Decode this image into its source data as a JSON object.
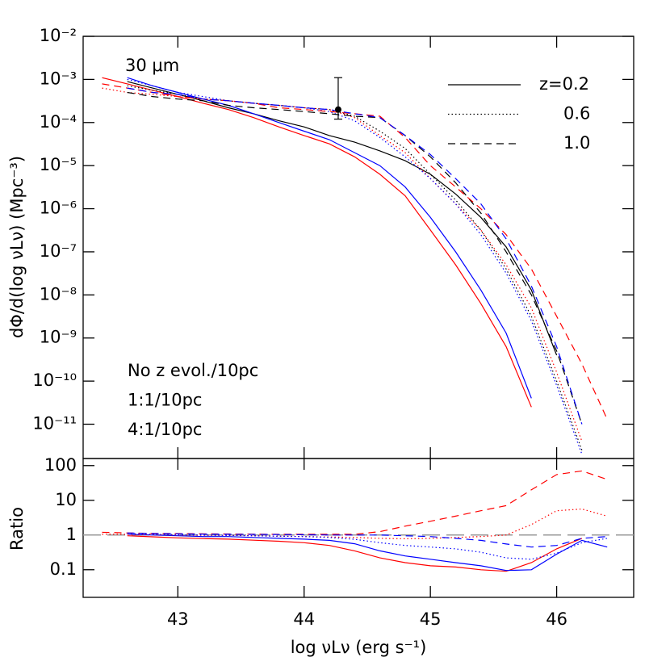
{
  "chart_data": [
    {
      "type": "line",
      "annotation": "30 μm",
      "ylabel": "dΦ/d(log νLν) (Mpc⁻³)",
      "xlim": [
        42.25,
        46.61
      ],
      "xticks": [
        43,
        44,
        45,
        46
      ],
      "ylog": true,
      "ylim": [
        1.6e-12,
        0.01
      ],
      "yticks": [
        {
          "value": 0.01,
          "label": "10⁻²"
        },
        {
          "value": 0.001,
          "label": "10⁻³"
        },
        {
          "value": 0.0001,
          "label": "10⁻⁴"
        },
        {
          "value": 1e-05,
          "label": "10⁻⁵"
        },
        {
          "value": 1e-06,
          "label": "10⁻⁶"
        },
        {
          "value": 1e-07,
          "label": "10⁻⁷"
        },
        {
          "value": 1e-08,
          "label": "10⁻⁸"
        },
        {
          "value": 1e-09,
          "label": "10⁻⁹"
        },
        {
          "value": 1e-10,
          "label": "10⁻¹⁰"
        },
        {
          "value": 1e-11,
          "label": "10⁻¹¹"
        }
      ],
      "legend": [
        {
          "label": "z=0.2",
          "dash": "solid"
        },
        {
          "label": "0.6",
          "dash": "dotted"
        },
        {
          "label": "1.0",
          "dash": "dashed"
        }
      ],
      "labels": [
        {
          "text": "No z evol./10pc",
          "color": "#000000"
        },
        {
          "text": "1:1/10pc",
          "color": "#ff0000"
        },
        {
          "text": "4:1/10pc",
          "color": "#0000ff"
        }
      ],
      "point": {
        "x": 44.27,
        "y": 0.0002,
        "ylow": 0.00012,
        "yhigh": 0.0011,
        "color": "#000000"
      },
      "x": [
        42.4,
        42.6,
        42.8,
        43.0,
        43.2,
        43.4,
        43.6,
        43.8,
        44.0,
        44.2,
        44.4,
        44.6,
        44.8,
        45.0,
        45.2,
        45.4,
        45.6,
        45.8,
        46.0,
        46.2,
        46.4
      ],
      "series": [
        {
          "color": "#000000",
          "dash": "solid",
          "values": [
            null,
            0.00089,
            0.00063,
            0.00045,
            0.00032,
            0.00022,
            0.00016,
            0.00011,
            7.9e-05,
            5e-05,
            3.5e-05,
            2.2e-05,
            1.3e-05,
            6.3e-06,
            2.2e-06,
            6.3e-07,
            1.3e-07,
            1.3e-08,
            4e-10,
            null,
            null
          ]
        },
        {
          "color": "#ff0000",
          "dash": "solid",
          "values": [
            0.0011,
            0.00079,
            0.00056,
            0.0004,
            0.00028,
            0.0002,
            0.00013,
            7.9e-05,
            5e-05,
            3.2e-05,
            1.6e-05,
            6.3e-06,
            2e-06,
            3.2e-07,
            5e-08,
            6.3e-09,
            6.3e-10,
            2.5e-11,
            null,
            null,
            null
          ]
        },
        {
          "color": "#0000ff",
          "dash": "solid",
          "values": [
            null,
            0.0011,
            0.00071,
            0.0005,
            0.00035,
            0.00025,
            0.00016,
            0.0001,
            6.3e-05,
            4e-05,
            2e-05,
            1e-05,
            3.2e-06,
            6.3e-07,
            1e-07,
            1.3e-08,
            1.3e-09,
            4e-11,
            null,
            null,
            null
          ]
        },
        {
          "color": "#000000",
          "dash": "dotted",
          "values": [
            null,
            0.00071,
            0.00056,
            0.00045,
            0.00035,
            0.00032,
            0.00028,
            0.00025,
            0.00022,
            0.0002,
            0.00014,
            6.3e-05,
            2.5e-05,
            6.3e-06,
            1.6e-06,
            3.2e-07,
            4e-08,
            3.2e-09,
            1e-10,
            2.5e-12,
            null
          ]
        },
        {
          "color": "#ff0000",
          "dash": "dotted",
          "values": [
            0.00063,
            0.0005,
            0.00045,
            0.0004,
            0.00035,
            0.00032,
            0.00028,
            0.00025,
            0.00022,
            0.0002,
            0.00013,
            5e-05,
            2e-05,
            5e-06,
            1.3e-06,
            3.2e-07,
            5e-08,
            5e-09,
            1.6e-10,
            4e-12,
            null
          ]
        },
        {
          "color": "#0000ff",
          "dash": "dotted",
          "values": [
            null,
            0.001,
            0.00071,
            0.0005,
            0.0004,
            0.00032,
            0.00028,
            0.00025,
            0.00022,
            0.00018,
            0.00011,
            4.5e-05,
            1.6e-05,
            5e-06,
            1.3e-06,
            2.5e-07,
            3.2e-08,
            2.5e-09,
            7.9e-11,
            2e-12,
            null
          ]
        },
        {
          "color": "#000000",
          "dash": "dashed",
          "values": [
            null,
            0.0005,
            0.0004,
            0.00035,
            0.00032,
            0.00025,
            0.00022,
            0.0002,
            0.00018,
            0.00016,
            0.00014,
            0.00013,
            5e-05,
            1.6e-05,
            4e-06,
            7.9e-07,
            1e-07,
            1e-08,
            5e-10,
            1e-11,
            null
          ]
        },
        {
          "color": "#ff0000",
          "dash": "dashed",
          "values": [
            0.00079,
            0.00063,
            0.0005,
            0.0004,
            0.00035,
            0.00032,
            0.00028,
            0.00022,
            0.0002,
            0.00018,
            0.00016,
            0.00014,
            4.5e-05,
            1e-05,
            3.2e-06,
            1e-06,
            2.5e-07,
            4e-08,
            3.2e-09,
            2.5e-10,
            1.3e-11
          ]
        },
        {
          "color": "#0000ff",
          "dash": "dashed",
          "values": [
            null,
            0.00063,
            0.0005,
            0.00045,
            0.00035,
            0.00032,
            0.00028,
            0.00025,
            0.00022,
            0.0002,
            0.00016,
            0.00013,
            5e-05,
            1.8e-05,
            5e-06,
            1.3e-06,
            2e-07,
            1.6e-08,
            6.3e-10,
            1e-11,
            null
          ]
        }
      ]
    },
    {
      "type": "line",
      "xlabel": "log νLν (erg s⁻¹)",
      "ylabel": "Ratio",
      "xlim": [
        42.25,
        46.61
      ],
      "xticks": [
        43,
        44,
        45,
        46
      ],
      "ylog": true,
      "ylim": [
        0.016,
        160
      ],
      "yticks": [
        100,
        10,
        1,
        0.1
      ],
      "reference": {
        "value": 1,
        "color": "#999999",
        "dash": "longdash"
      },
      "x": [
        42.4,
        42.6,
        42.8,
        43.0,
        43.2,
        43.4,
        43.6,
        43.8,
        44.0,
        44.2,
        44.4,
        44.6,
        44.8,
        45.0,
        45.2,
        45.4,
        45.6,
        45.8,
        46.0,
        46.2,
        46.4
      ],
      "series": [
        {
          "color": "#ff0000",
          "dash": "solid",
          "values": [
            null,
            0.95,
            0.89,
            0.83,
            0.79,
            0.76,
            0.71,
            0.66,
            0.6,
            0.5,
            0.35,
            0.22,
            0.16,
            0.13,
            0.12,
            0.1,
            0.09,
            0.16,
            0.4,
            0.8,
            null
          ]
        },
        {
          "color": "#0000ff",
          "dash": "solid",
          "values": [
            null,
            1.05,
            1.0,
            0.95,
            0.9,
            0.9,
            0.85,
            0.8,
            0.76,
            0.7,
            0.56,
            0.35,
            0.25,
            0.2,
            0.16,
            0.13,
            0.095,
            0.1,
            0.28,
            0.7,
            0.45
          ]
        },
        {
          "color": "#ff0000",
          "dash": "dotted",
          "values": [
            1.05,
            1.05,
            1.02,
            1.0,
            0.98,
            0.97,
            0.95,
            0.92,
            0.9,
            0.88,
            0.85,
            0.8,
            0.78,
            0.8,
            0.85,
            0.9,
            1.0,
            2.0,
            5.0,
            5.6,
            3.5
          ]
        },
        {
          "color": "#0000ff",
          "dash": "dotted",
          "values": [
            null,
            1.1,
            1.05,
            1.02,
            1.0,
            0.98,
            0.95,
            0.92,
            0.9,
            0.85,
            0.75,
            0.6,
            0.5,
            0.45,
            0.4,
            0.32,
            0.22,
            0.2,
            0.3,
            0.6,
            0.8
          ]
        },
        {
          "color": "#ff0000",
          "dash": "dashed",
          "values": [
            1.2,
            1.15,
            1.12,
            1.1,
            1.08,
            1.07,
            1.06,
            1.05,
            1.05,
            1.05,
            1.05,
            1.25,
            1.8,
            2.5,
            3.5,
            5.0,
            7.0,
            20,
            55,
            70,
            40
          ]
        },
        {
          "color": "#0000ff",
          "dash": "dashed",
          "values": [
            null,
            1.15,
            1.1,
            1.08,
            1.06,
            1.05,
            1.04,
            1.03,
            1.02,
            1.0,
            1.0,
            1.0,
            0.95,
            0.9,
            0.8,
            0.7,
            0.55,
            0.45,
            0.5,
            0.8,
            0.9
          ]
        }
      ]
    }
  ]
}
